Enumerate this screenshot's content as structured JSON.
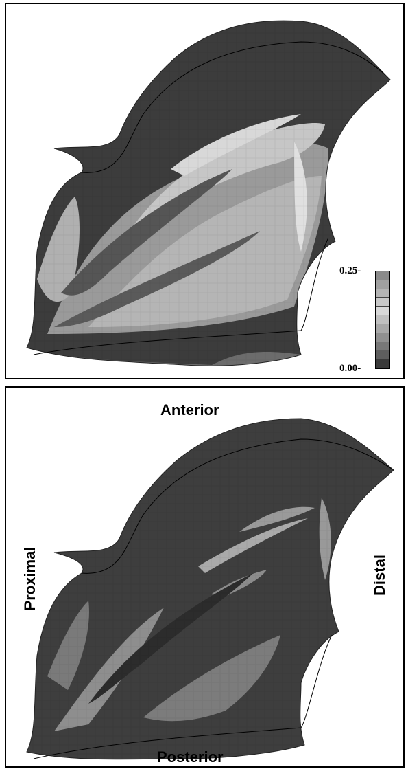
{
  "top_panel": {
    "colorbar": {
      "max_label": "0.25-",
      "min_label": "0.00-",
      "colors": [
        "#8a8a8a",
        "#a0a0a0",
        "#b4b4b4",
        "#c8c8c8",
        "#d8d8d8",
        "#c0c0c0",
        "#a8a8a8",
        "#909090",
        "#787878",
        "#5e5e5e",
        "#3a3a3a"
      ]
    }
  },
  "bottom_panel": {
    "labels": {
      "anterior": "Anterior",
      "posterior": "Posterior",
      "proximal": "Proximal",
      "distal": "Distal"
    }
  }
}
